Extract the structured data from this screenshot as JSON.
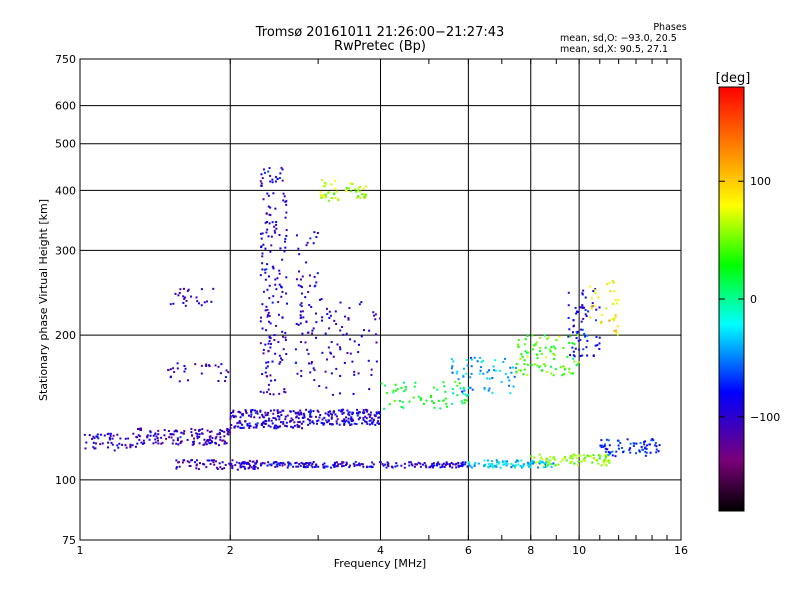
{
  "title": {
    "line1": "Tromsø 20161011 21:26:00−21:27:43",
    "line2": "RwPretec (Bp)"
  },
  "phase_stats": {
    "header": "Phases",
    "line_o": "mean, sd,O: −93.0, 20.5",
    "line_x": "mean, sd,X:  90.5, 27.1"
  },
  "colorbar": {
    "label": "[deg]",
    "ticks": [
      "100",
      "0",
      "−100"
    ],
    "tick_values": [
      100,
      0,
      -100
    ],
    "range": [
      -180,
      180
    ]
  },
  "colors": {
    "background": "#ffffff",
    "axes": "#000000",
    "grid": "#000000"
  },
  "chart_data": {
    "type": "scatter",
    "xlabel": "Frequency [MHz]",
    "ylabel": "Stationary phase Virtual Height [km]",
    "x_scale": "log",
    "y_scale": "log",
    "xlim": [
      1,
      16
    ],
    "ylim": [
      75,
      750
    ],
    "x_ticks": [
      1,
      2,
      4,
      6,
      8,
      10,
      16
    ],
    "x_tick_labels": [
      "1",
      "2",
      "4",
      "6",
      "8",
      "10",
      "16"
    ],
    "y_ticks": [
      75,
      100,
      200,
      300,
      400,
      500,
      600,
      750
    ],
    "y_tick_labels": [
      "75",
      "100",
      "200",
      "300",
      "400",
      "500",
      "600",
      "750"
    ],
    "grid": true,
    "color_variable": "Phase [deg]",
    "color_range": [
      -180,
      180
    ],
    "traces": [
      {
        "f_range": [
          1.0,
          1.3
        ],
        "h": [
          115,
          125
        ],
        "phase": -100,
        "n": 50
      },
      {
        "f_range": [
          1.3,
          2.0
        ],
        "h": [
          118,
          128
        ],
        "phase": -105,
        "n": 140
      },
      {
        "f_range": [
          2.0,
          2.8
        ],
        "h": [
          128,
          140
        ],
        "phase": -100,
        "n": 160
      },
      {
        "f_range": [
          2.8,
          4.0
        ],
        "h": [
          130,
          140
        ],
        "phase": -95,
        "n": 160
      },
      {
        "f_range": [
          1.55,
          2.3
        ],
        "h": [
          105,
          110
        ],
        "phase": -110,
        "n": 70
      },
      {
        "f_range": [
          2.0,
          6.0
        ],
        "h": [
          106,
          109
        ],
        "phase": -95,
        "n": 220
      },
      {
        "f_range": [
          6.0,
          9.0
        ],
        "h": [
          106,
          110
        ],
        "phase": -30,
        "n": 100
      },
      {
        "f_range": [
          8.0,
          11.5
        ],
        "h": [
          107,
          113
        ],
        "phase": 60,
        "n": 80
      },
      {
        "f_range": [
          11.0,
          14.5
        ],
        "h": [
          112,
          122
        ],
        "phase": -70,
        "n": 70
      },
      {
        "f_range": [
          1.5,
          2.0
        ],
        "h": [
          160,
          175
        ],
        "phase": -105,
        "n": 30
      },
      {
        "f_range": [
          1.5,
          1.85
        ],
        "h": [
          230,
          250
        ],
        "phase": -100,
        "n": 25
      },
      {
        "f_range": [
          2.3,
          2.6
        ],
        "h": [
          150,
          450
        ],
        "phase": -100,
        "n": 180
      },
      {
        "f_range": [
          2.7,
          3.0
        ],
        "h": [
          160,
          330
        ],
        "phase": -95,
        "n": 70
      },
      {
        "f_range": [
          3.0,
          3.3
        ],
        "h": [
          380,
          420
        ],
        "phase": 70,
        "n": 30
      },
      {
        "f_range": [
          3.4,
          3.8
        ],
        "h": [
          385,
          415
        ],
        "phase": 60,
        "n": 25
      },
      {
        "f_range": [
          3.0,
          4.0
        ],
        "h": [
          150,
          240
        ],
        "phase": -100,
        "n": 70
      },
      {
        "f_range": [
          4.0,
          6.0
        ],
        "h": [
          140,
          160
        ],
        "phase": 20,
        "n": 60
      },
      {
        "f_range": [
          5.5,
          7.5
        ],
        "h": [
          150,
          180
        ],
        "phase": -40,
        "n": 70
      },
      {
        "f_range": [
          7.5,
          10.0
        ],
        "h": [
          165,
          200
        ],
        "phase": 40,
        "n": 90
      },
      {
        "f_range": [
          9.5,
          11.0
        ],
        "h": [
          180,
          250
        ],
        "phase": -90,
        "n": 70
      },
      {
        "f_range": [
          10.5,
          12.0
        ],
        "h": [
          200,
          260
        ],
        "phase": 90,
        "n": 35
      }
    ]
  }
}
